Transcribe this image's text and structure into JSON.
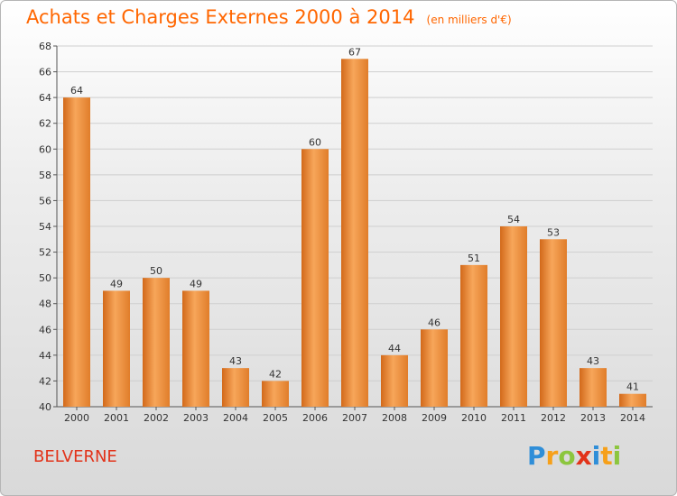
{
  "title": "Achats et Charges Externes 2000 à 2014",
  "unit_label": "(en milliers d'€)",
  "location": "BELVERNE",
  "brand": {
    "letters": [
      "P",
      "r",
      "o",
      "x",
      "i",
      "t",
      "i"
    ],
    "colors": [
      "#2f8ed8",
      "#f6a01a",
      "#8cc63e",
      "#e2331a",
      "#2f8ed8",
      "#f6a01a",
      "#8cc63e"
    ]
  },
  "colors": {
    "bar_light": "#f7a65a",
    "bar_dark": "#d2691a",
    "text": "#333333",
    "grid": "#cfcfcf"
  },
  "chart_data": {
    "type": "bar",
    "categories": [
      "2000",
      "2001",
      "2002",
      "2003",
      "2004",
      "2005",
      "2006",
      "2007",
      "2008",
      "2009",
      "2010",
      "2011",
      "2012",
      "2013",
      "2014"
    ],
    "values": [
      64,
      49,
      50,
      49,
      43,
      42,
      60,
      67,
      44,
      46,
      51,
      54,
      53,
      43,
      41
    ],
    "title": "Achats et Charges Externes 2000 à 2014",
    "ylim": [
      40,
      68
    ],
    "yticks": [
      40,
      42,
      44,
      46,
      48,
      50,
      52,
      54,
      56,
      58,
      60,
      62,
      64,
      66,
      68
    ],
    "grid": true,
    "data_labels": true
  }
}
